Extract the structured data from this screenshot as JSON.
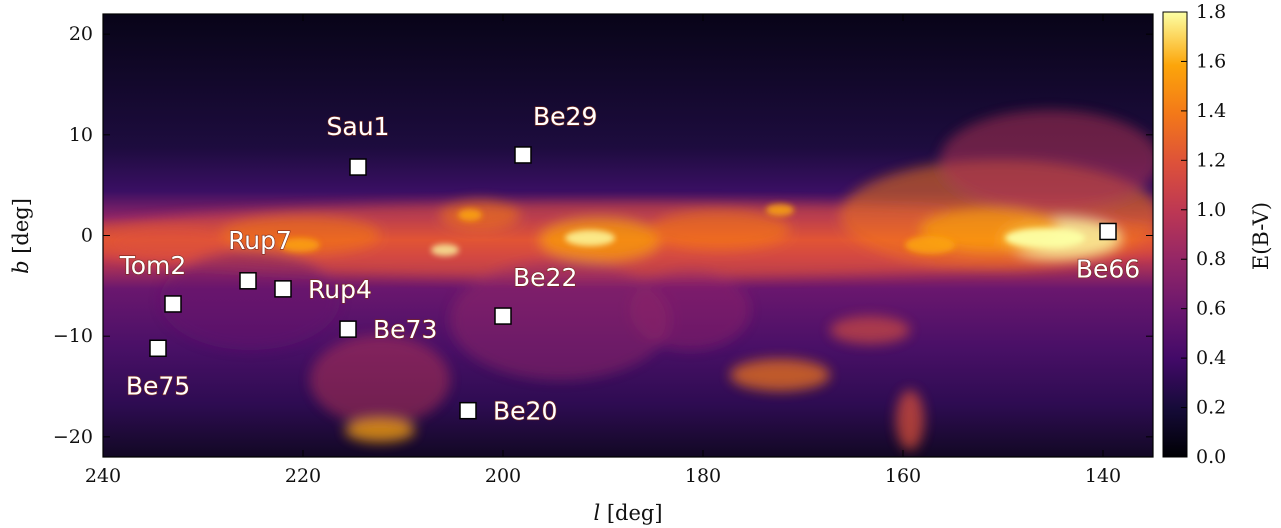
{
  "chart_data": {
    "type": "heatmap",
    "title": "",
    "xlabel": "l [deg]",
    "ylabel": "b [deg]",
    "xlim": [
      240,
      135
    ],
    "ylim": [
      -22,
      22
    ],
    "xticks": [
      240,
      220,
      200,
      180,
      160,
      140
    ],
    "yticks": [
      20,
      10,
      0,
      -10,
      -20
    ],
    "colorbar": {
      "label": "E(B-V)",
      "range": [
        0.0,
        1.8
      ],
      "ticks": [
        "0.0",
        "0.2",
        "0.4",
        "0.6",
        "0.8",
        "1.0",
        "1.2",
        "1.4",
        "1.6",
        "1.8"
      ],
      "colormap": "inferno"
    },
    "clusters": [
      {
        "name": "Sau1",
        "l": 214.5,
        "b": 6.8,
        "label_pos": "above"
      },
      {
        "name": "Be29",
        "l": 198.0,
        "b": 8.0,
        "label_pos": "above-right"
      },
      {
        "name": "Rup7",
        "l": 225.5,
        "b": -4.5,
        "label_pos": "above"
      },
      {
        "name": "Rup4",
        "l": 222.0,
        "b": -5.3,
        "label_pos": "right"
      },
      {
        "name": "Tom2",
        "l": 233.0,
        "b": -6.8,
        "label_pos": "above-left"
      },
      {
        "name": "Be73",
        "l": 215.5,
        "b": -9.3,
        "label_pos": "right"
      },
      {
        "name": "Be22",
        "l": 200.0,
        "b": -8.0,
        "label_pos": "above-right"
      },
      {
        "name": "Be75",
        "l": 234.5,
        "b": -11.2,
        "label_pos": "below"
      },
      {
        "name": "Be20",
        "l": 203.5,
        "b": -17.4,
        "label_pos": "right"
      },
      {
        "name": "Be66",
        "l": 139.5,
        "b": 0.4,
        "label_pos": "below"
      }
    ],
    "grid": false
  },
  "colors": {
    "marker_fill": "#ffffff",
    "marker_edge": "#000000",
    "label_text": "#ffffff"
  }
}
